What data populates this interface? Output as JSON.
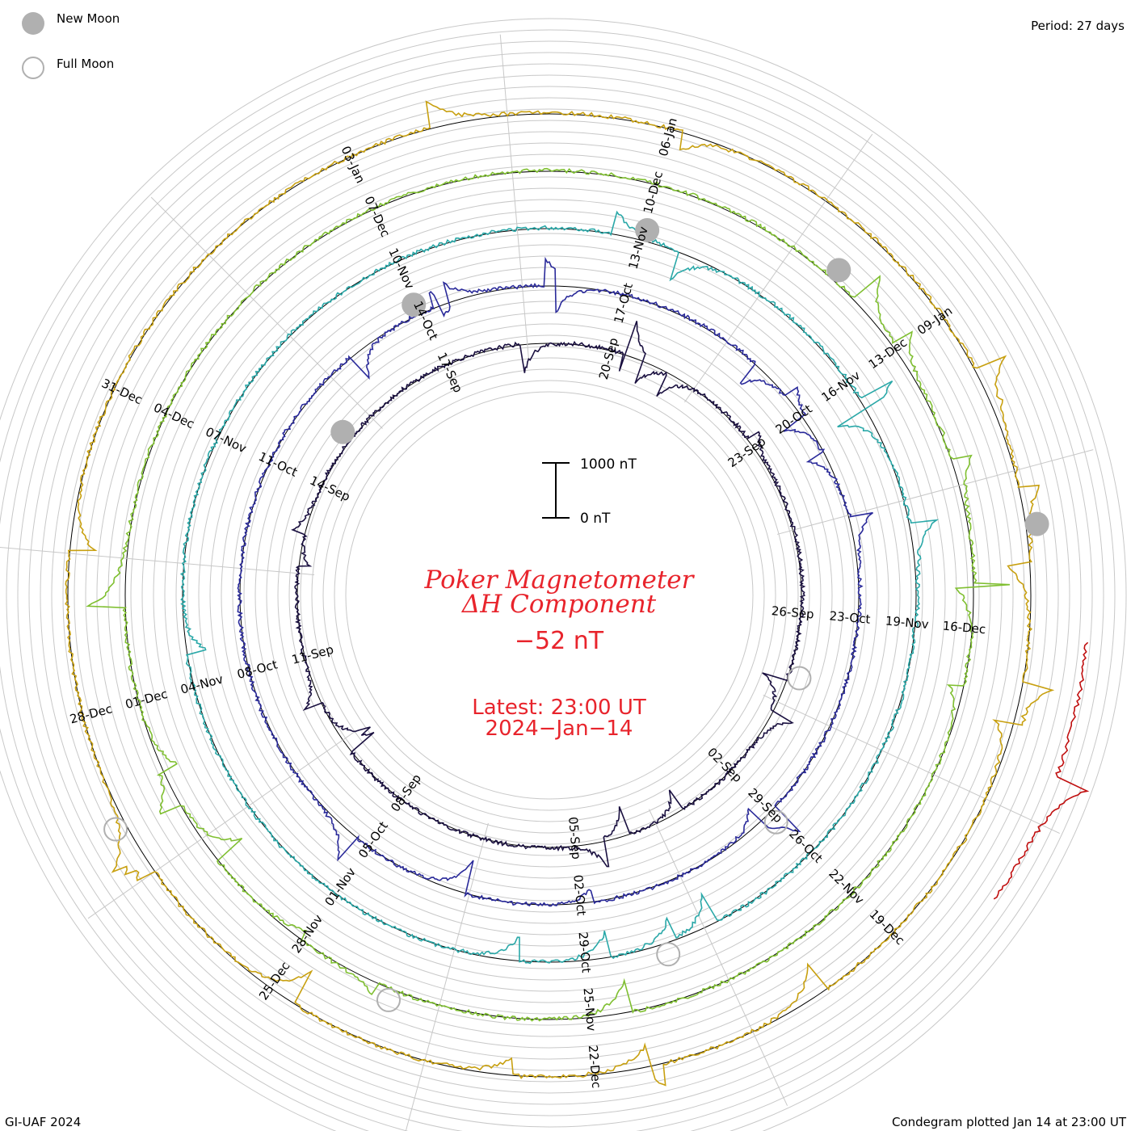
{
  "legend": {
    "new_moon_label": "New Moon",
    "full_moon_label": "Full Moon",
    "new_moon_color": "#b0b0b0",
    "full_moon_color": "#b0b0b0"
  },
  "period_label": "Period: 27 days",
  "footer_left": "GI-UAF 2024",
  "footer_right": "Condegram plotted Jan 14 at 23:00 UT",
  "title_line1": "Poker Magnetometer",
  "title_line2": "ΔH Component",
  "current_value": "−52 nT",
  "latest_line1": "Latest: 23:00 UT",
  "latest_line2": "2024−Jan−14",
  "scale": {
    "top_label": "1000 nT",
    "bottom_label": "0 nT"
  },
  "chart_data": {
    "type": "line",
    "title": "Poker Magnetometer ΔH Component",
    "period_days": 27,
    "units": "nT",
    "latest_value": -52,
    "latest_time": "2024-Jan-14 23:00 UT",
    "turns": [
      {
        "start": "2023-Aug-30",
        "color": "#1a1040",
        "labels": [
          "02-Sep",
          "05-Sep",
          "08-Sep",
          "11-Sep",
          "14-Sep",
          "17-Sep",
          "20-Sep",
          "23-Sep",
          "26-Sep"
        ]
      },
      {
        "start": "2023-Sep-26",
        "color": "#2a2a9a",
        "labels": [
          "29-Sep",
          "02-Oct",
          "05-Oct",
          "08-Oct",
          "11-Oct",
          "14-Oct",
          "17-Oct",
          "20-Oct",
          "23-Oct"
        ]
      },
      {
        "start": "2023-Oct-23",
        "color": "#2aa8a8",
        "labels": [
          "26-Oct",
          "29-Oct",
          "01-Nov",
          "04-Nov",
          "07-Nov",
          "10-Nov",
          "13-Nov",
          "16-Nov",
          "19-Nov"
        ]
      },
      {
        "start": "2023-Nov-19",
        "color": "#7fbf30",
        "labels": [
          "22-Nov",
          "25-Nov",
          "28-Nov",
          "01-Dec",
          "04-Dec",
          "07-Dec",
          "10-Dec",
          "13-Dec",
          "16-Dec"
        ]
      },
      {
        "start": "2023-Dec-16",
        "color": "#c8a010",
        "labels": [
          "19-Dec",
          "22-Dec",
          "25-Dec",
          "28-Dec",
          "31-Dec",
          "03-Jan",
          "06-Jan",
          "09-Jan"
        ]
      },
      {
        "start": "2024-Jan-12",
        "color": "#c01010",
        "labels": []
      }
    ],
    "new_moons": [
      "2023-Sep-15",
      "2023-Oct-14",
      "2023-Nov-13",
      "2023-Dec-12",
      "2024-Jan-11"
    ],
    "full_moons": [
      "2023-Aug-31",
      "2023-Sep-29",
      "2023-Oct-28",
      "2023-Nov-27",
      "2023-Dec-27"
    ]
  }
}
